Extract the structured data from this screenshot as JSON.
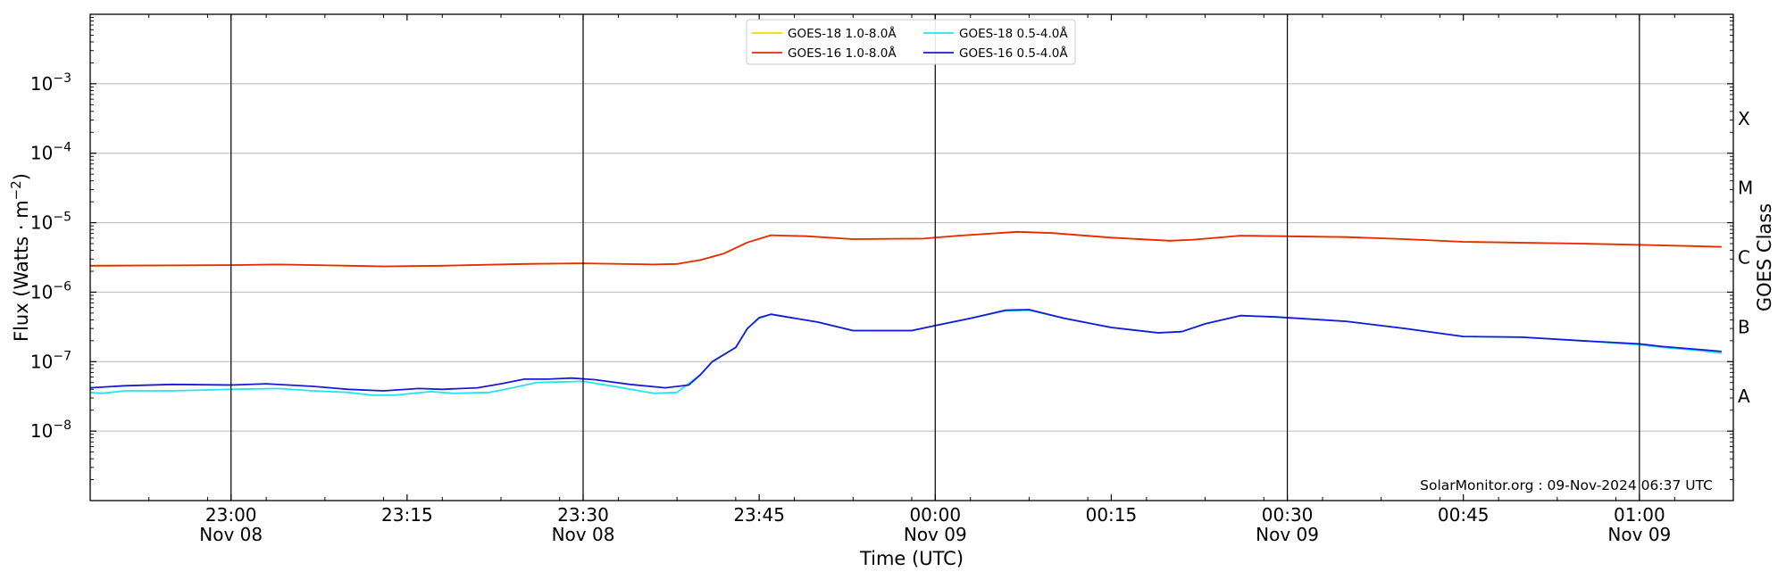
{
  "chart_data": {
    "type": "line",
    "xlabel": "Time (UTC)",
    "ylabel_main": "Flux (Watts · m",
    "ylabel_sup": "−2",
    "ylabel_close": ")",
    "right_label": "GOES Class",
    "y_scale": "log",
    "ylim": [
      1e-09,
      0.01
    ],
    "xlim": [
      "2024-11-08T22:48",
      "2024-11-09T01:08"
    ],
    "x_ticks": [
      {
        "time": "2024-11-08T23:00",
        "line1": "23:00",
        "line2": "Nov 08"
      },
      {
        "time": "2024-11-08T23:15",
        "line1": "23:15",
        "line2": ""
      },
      {
        "time": "2024-11-08T23:30",
        "line1": "23:30",
        "line2": "Nov 08"
      },
      {
        "time": "2024-11-08T23:45",
        "line1": "23:45",
        "line2": ""
      },
      {
        "time": "2024-11-09T00:00",
        "line1": "00:00",
        "line2": "Nov 09"
      },
      {
        "time": "2024-11-09T00:15",
        "line1": "00:15",
        "line2": ""
      },
      {
        "time": "2024-11-09T00:30",
        "line1": "00:30",
        "line2": "Nov 09"
      },
      {
        "time": "2024-11-09T00:45",
        "line1": "00:45",
        "line2": ""
      },
      {
        "time": "2024-11-09T01:00",
        "line1": "01:00",
        "line2": "Nov 09"
      }
    ],
    "vlines": [
      "2024-11-08T23:00",
      "2024-11-08T23:30",
      "2024-11-09T00:00",
      "2024-11-09T00:30",
      "2024-11-09T01:00"
    ],
    "y_ticks": [
      {
        "value": 1e-08,
        "base": "10",
        "exp": "−8"
      },
      {
        "value": 1e-07,
        "base": "10",
        "exp": "−7"
      },
      {
        "value": 1e-06,
        "base": "10",
        "exp": "−6"
      },
      {
        "value": 1e-05,
        "base": "10",
        "exp": "−5"
      },
      {
        "value": 0.0001,
        "base": "10",
        "exp": "−4"
      },
      {
        "value": 0.001,
        "base": "10",
        "exp": "−3"
      }
    ],
    "gridlines_y": [
      1e-08,
      1e-07,
      1e-06,
      1e-05,
      0.0001,
      0.001
    ],
    "goes_classes": [
      {
        "label": "A",
        "value": 3.16e-08
      },
      {
        "label": "B",
        "value": 3.16e-07
      },
      {
        "label": "C",
        "value": 3.16e-06
      },
      {
        "label": "M",
        "value": 3.16e-05
      },
      {
        "label": "X",
        "value": 0.000316
      }
    ],
    "legend_position": "top-center",
    "series": [
      {
        "name": "GOES-18 1.0-8.0Å",
        "color": "#ffd700",
        "points": [
          [
            "2024-11-08T22:48",
            2.4e-06
          ],
          [
            "2024-11-08T23:00",
            2.45e-06
          ],
          [
            "2024-11-08T23:04",
            2.5e-06
          ],
          [
            "2024-11-08T23:10",
            2.4e-06
          ],
          [
            "2024-11-08T23:13",
            2.35e-06
          ],
          [
            "2024-11-08T23:18",
            2.4e-06
          ],
          [
            "2024-11-08T23:25",
            2.55e-06
          ],
          [
            "2024-11-08T23:30",
            2.6e-06
          ],
          [
            "2024-11-08T23:36",
            2.5e-06
          ],
          [
            "2024-11-08T23:38",
            2.55e-06
          ],
          [
            "2024-11-08T23:40",
            2.9e-06
          ],
          [
            "2024-11-08T23:42",
            3.6e-06
          ],
          [
            "2024-11-08T23:44",
            5.2e-06
          ],
          [
            "2024-11-08T23:46",
            6.6e-06
          ],
          [
            "2024-11-08T23:49",
            6.4e-06
          ],
          [
            "2024-11-08T23:53",
            5.8e-06
          ],
          [
            "2024-11-08T23:59",
            5.9e-06
          ],
          [
            "2024-11-09T00:02",
            6.5e-06
          ],
          [
            "2024-11-09T00:07",
            7.4e-06
          ],
          [
            "2024-11-09T00:10",
            7.1e-06
          ],
          [
            "2024-11-09T00:15",
            6.1e-06
          ],
          [
            "2024-11-09T00:20",
            5.5e-06
          ],
          [
            "2024-11-09T00:22",
            5.7e-06
          ],
          [
            "2024-11-09T00:26",
            6.5e-06
          ],
          [
            "2024-11-09T00:35",
            6.2e-06
          ],
          [
            "2024-11-09T00:40",
            5.8e-06
          ],
          [
            "2024-11-09T00:45",
            5.3e-06
          ],
          [
            "2024-11-09T00:55",
            5e-06
          ],
          [
            "2024-11-09T01:00",
            4.8e-06
          ],
          [
            "2024-11-09T01:07",
            4.5e-06
          ]
        ]
      },
      {
        "name": "GOES-16 1.0-8.0Å",
        "color": "#e8290b",
        "points": [
          [
            "2024-11-08T22:48",
            2.4e-06
          ],
          [
            "2024-11-08T23:00",
            2.45e-06
          ],
          [
            "2024-11-08T23:04",
            2.5e-06
          ],
          [
            "2024-11-08T23:10",
            2.4e-06
          ],
          [
            "2024-11-08T23:13",
            2.35e-06
          ],
          [
            "2024-11-08T23:18",
            2.4e-06
          ],
          [
            "2024-11-08T23:25",
            2.55e-06
          ],
          [
            "2024-11-08T23:30",
            2.6e-06
          ],
          [
            "2024-11-08T23:36",
            2.5e-06
          ],
          [
            "2024-11-08T23:38",
            2.55e-06
          ],
          [
            "2024-11-08T23:40",
            2.9e-06
          ],
          [
            "2024-11-08T23:42",
            3.6e-06
          ],
          [
            "2024-11-08T23:44",
            5.2e-06
          ],
          [
            "2024-11-08T23:46",
            6.6e-06
          ],
          [
            "2024-11-08T23:49",
            6.4e-06
          ],
          [
            "2024-11-08T23:53",
            5.8e-06
          ],
          [
            "2024-11-08T23:59",
            5.9e-06
          ],
          [
            "2024-11-09T00:02",
            6.5e-06
          ],
          [
            "2024-11-09T00:07",
            7.4e-06
          ],
          [
            "2024-11-09T00:10",
            7.1e-06
          ],
          [
            "2024-11-09T00:15",
            6.1e-06
          ],
          [
            "2024-11-09T00:20",
            5.5e-06
          ],
          [
            "2024-11-09T00:22",
            5.7e-06
          ],
          [
            "2024-11-09T00:26",
            6.5e-06
          ],
          [
            "2024-11-09T00:35",
            6.2e-06
          ],
          [
            "2024-11-09T00:40",
            5.8e-06
          ],
          [
            "2024-11-09T00:45",
            5.3e-06
          ],
          [
            "2024-11-09T00:55",
            5e-06
          ],
          [
            "2024-11-09T01:00",
            4.8e-06
          ],
          [
            "2024-11-09T01:07",
            4.5e-06
          ]
        ]
      },
      {
        "name": "GOES-18 0.5-4.0Å",
        "color": "#22e5f0",
        "points": [
          [
            "2024-11-08T22:48",
            3.6e-08
          ],
          [
            "2024-11-08T22:49",
            3.5e-08
          ],
          [
            "2024-11-08T22:51",
            3.8e-08
          ],
          [
            "2024-11-08T22:55",
            3.8e-08
          ],
          [
            "2024-11-08T23:00",
            4e-08
          ],
          [
            "2024-11-08T23:04",
            4.1e-08
          ],
          [
            "2024-11-08T23:07",
            3.8e-08
          ],
          [
            "2024-11-08T23:10",
            3.6e-08
          ],
          [
            "2024-11-08T23:12",
            3.3e-08
          ],
          [
            "2024-11-08T23:14",
            3.3e-08
          ],
          [
            "2024-11-08T23:17",
            3.7e-08
          ],
          [
            "2024-11-08T23:19",
            3.5e-08
          ],
          [
            "2024-11-08T23:22",
            3.6e-08
          ],
          [
            "2024-11-08T23:24",
            4.2e-08
          ],
          [
            "2024-11-08T23:26",
            5e-08
          ],
          [
            "2024-11-08T23:30",
            5.2e-08
          ],
          [
            "2024-11-08T23:33",
            4.3e-08
          ],
          [
            "2024-11-08T23:36",
            3.5e-08
          ],
          [
            "2024-11-08T23:38",
            3.6e-08
          ],
          [
            "2024-11-08T23:40",
            6.5e-08
          ],
          [
            "2024-11-08T23:41",
            1e-07
          ],
          [
            "2024-11-08T23:43",
            1.6e-07
          ],
          [
            "2024-11-08T23:44",
            3e-07
          ],
          [
            "2024-11-08T23:45",
            4.2e-07
          ],
          [
            "2024-11-08T23:46",
            4.8e-07
          ],
          [
            "2024-11-08T23:50",
            3.7e-07
          ],
          [
            "2024-11-08T23:53",
            2.8e-07
          ],
          [
            "2024-11-08T23:58",
            2.8e-07
          ],
          [
            "2024-11-09T00:00",
            3.3e-07
          ],
          [
            "2024-11-09T00:03",
            4.2e-07
          ],
          [
            "2024-11-09T00:06",
            5.4e-07
          ],
          [
            "2024-11-09T00:08",
            5.5e-07
          ],
          [
            "2024-11-09T00:11",
            4.2e-07
          ],
          [
            "2024-11-09T00:15",
            3.1e-07
          ],
          [
            "2024-11-09T00:19",
            2.6e-07
          ],
          [
            "2024-11-09T00:21",
            2.7e-07
          ],
          [
            "2024-11-09T00:23",
            3.5e-07
          ],
          [
            "2024-11-09T00:26",
            4.6e-07
          ],
          [
            "2024-11-09T00:29",
            4.4e-07
          ],
          [
            "2024-11-09T00:35",
            3.8e-07
          ],
          [
            "2024-11-09T00:40",
            3e-07
          ],
          [
            "2024-11-09T00:45",
            2.3e-07
          ],
          [
            "2024-11-09T00:50",
            2.25e-07
          ],
          [
            "2024-11-09T00:55",
            2e-07
          ],
          [
            "2024-11-09T01:00",
            1.75e-07
          ],
          [
            "2024-11-09T01:02",
            1.6e-07
          ],
          [
            "2024-11-09T01:05",
            1.45e-07
          ],
          [
            "2024-11-09T01:07",
            1.32e-07
          ]
        ]
      },
      {
        "name": "GOES-16 0.5-4.0Å",
        "color": "#1a1ad6",
        "points": [
          [
            "2024-11-08T22:48",
            4.2e-08
          ],
          [
            "2024-11-08T22:51",
            4.5e-08
          ],
          [
            "2024-11-08T22:55",
            4.7e-08
          ],
          [
            "2024-11-08T23:00",
            4.6e-08
          ],
          [
            "2024-11-08T23:03",
            4.8e-08
          ],
          [
            "2024-11-08T23:07",
            4.4e-08
          ],
          [
            "2024-11-08T23:10",
            4e-08
          ],
          [
            "2024-11-08T23:13",
            3.8e-08
          ],
          [
            "2024-11-08T23:16",
            4.1e-08
          ],
          [
            "2024-11-08T23:18",
            4e-08
          ],
          [
            "2024-11-08T23:21",
            4.2e-08
          ],
          [
            "2024-11-08T23:23",
            4.8e-08
          ],
          [
            "2024-11-08T23:25",
            5.6e-08
          ],
          [
            "2024-11-08T23:27",
            5.6e-08
          ],
          [
            "2024-11-08T23:29",
            5.8e-08
          ],
          [
            "2024-11-08T23:31",
            5.5e-08
          ],
          [
            "2024-11-08T23:34",
            4.7e-08
          ],
          [
            "2024-11-08T23:37",
            4.2e-08
          ],
          [
            "2024-11-08T23:39",
            4.6e-08
          ],
          [
            "2024-11-08T23:40",
            6.5e-08
          ],
          [
            "2024-11-08T23:41",
            1e-07
          ],
          [
            "2024-11-08T23:43",
            1.6e-07
          ],
          [
            "2024-11-08T23:44",
            3e-07
          ],
          [
            "2024-11-08T23:45",
            4.3e-07
          ],
          [
            "2024-11-08T23:46",
            4.8e-07
          ],
          [
            "2024-11-08T23:50",
            3.7e-07
          ],
          [
            "2024-11-08T23:53",
            2.8e-07
          ],
          [
            "2024-11-08T23:58",
            2.8e-07
          ],
          [
            "2024-11-09T00:00",
            3.3e-07
          ],
          [
            "2024-11-09T00:03",
            4.2e-07
          ],
          [
            "2024-11-09T00:06",
            5.5e-07
          ],
          [
            "2024-11-09T00:08",
            5.6e-07
          ],
          [
            "2024-11-09T00:11",
            4.2e-07
          ],
          [
            "2024-11-09T00:15",
            3.1e-07
          ],
          [
            "2024-11-09T00:19",
            2.6e-07
          ],
          [
            "2024-11-09T00:21",
            2.7e-07
          ],
          [
            "2024-11-09T00:23",
            3.5e-07
          ],
          [
            "2024-11-09T00:26",
            4.6e-07
          ],
          [
            "2024-11-09T00:29",
            4.4e-07
          ],
          [
            "2024-11-09T00:35",
            3.8e-07
          ],
          [
            "2024-11-09T00:40",
            3e-07
          ],
          [
            "2024-11-09T00:45",
            2.3e-07
          ],
          [
            "2024-11-09T00:50",
            2.25e-07
          ],
          [
            "2024-11-09T00:55",
            2e-07
          ],
          [
            "2024-11-09T01:00",
            1.8e-07
          ],
          [
            "2024-11-09T01:02",
            1.65e-07
          ],
          [
            "2024-11-09T01:05",
            1.5e-07
          ],
          [
            "2024-11-09T01:07",
            1.4e-07
          ]
        ]
      }
    ],
    "credit": "SolarMonitor.org : 09-Nov-2024 06:37 UTC"
  }
}
